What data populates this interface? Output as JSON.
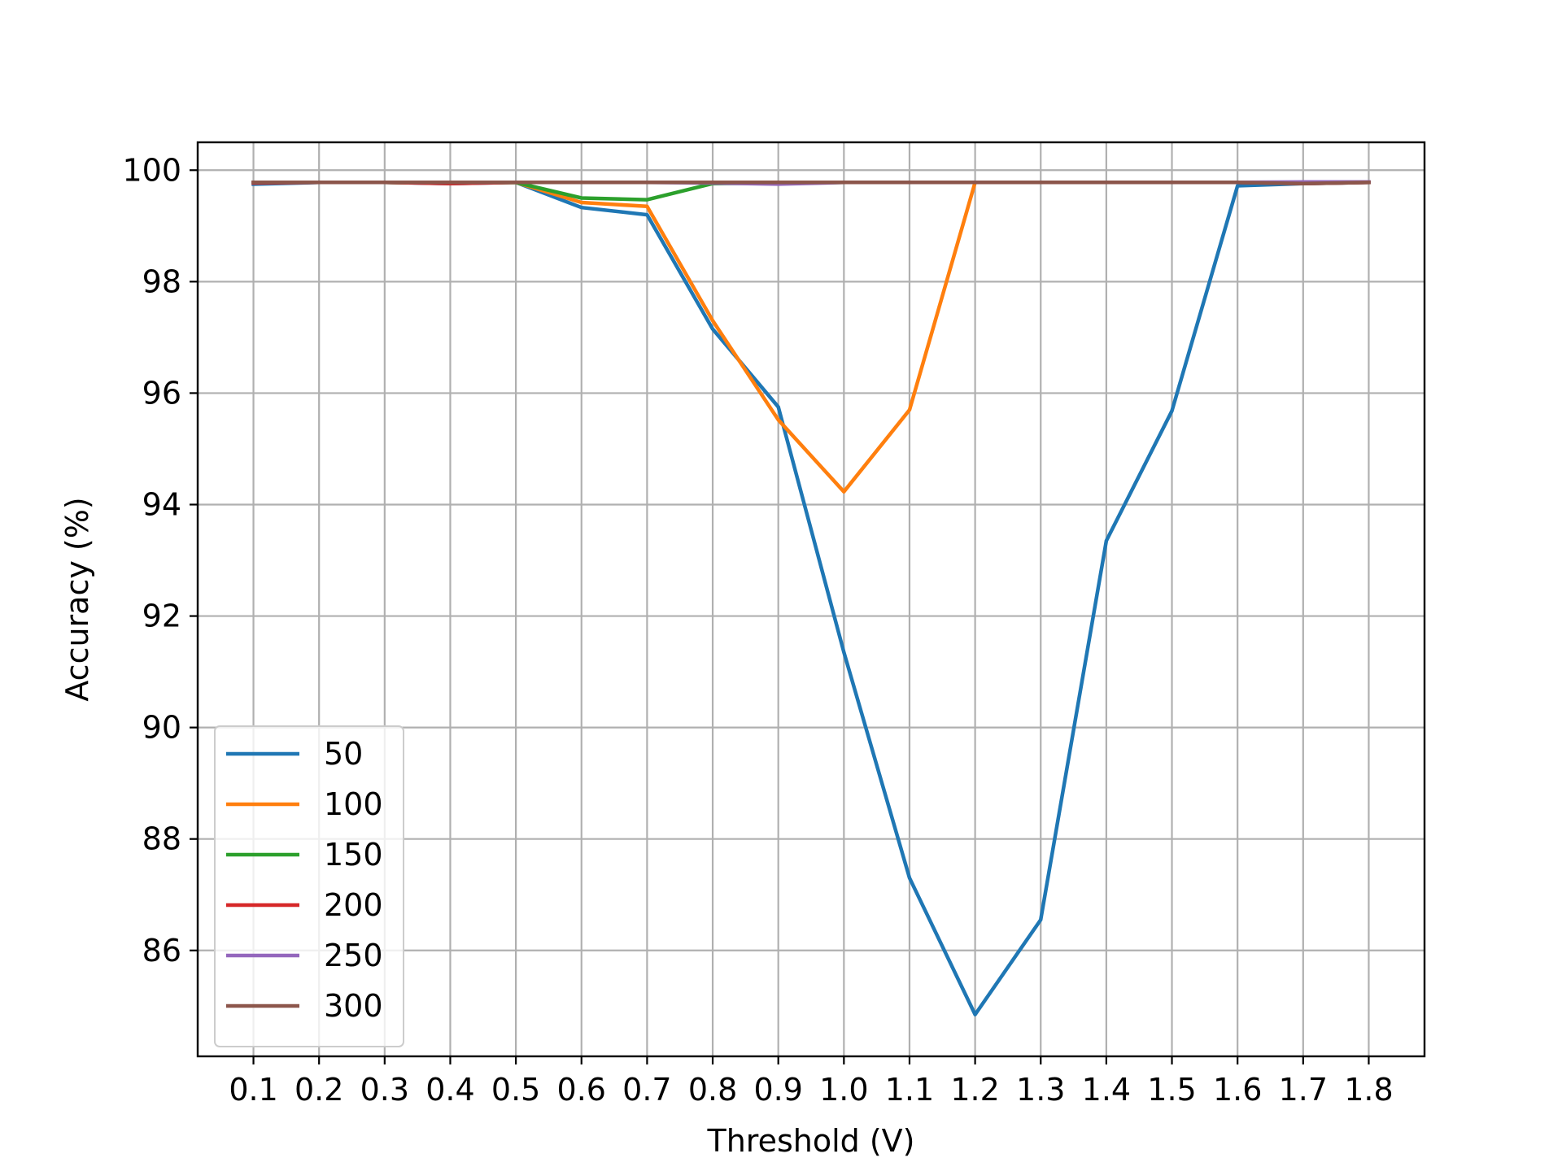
{
  "chart_data": {
    "type": "line",
    "title": "",
    "xlabel": "Threshold (V)",
    "ylabel": "Accuracy (%)",
    "x": [
      0.1,
      0.2,
      0.3,
      0.4,
      0.5,
      0.6,
      0.7,
      0.8,
      0.9,
      1.0,
      1.1,
      1.2,
      1.3,
      1.4,
      1.5,
      1.6,
      1.7,
      1.8
    ],
    "x_tick_labels": [
      "0.1",
      "0.2",
      "0.3",
      "0.4",
      "0.5",
      "0.6",
      "0.7",
      "0.8",
      "0.9",
      "1.0",
      "1.1",
      "1.2",
      "1.3",
      "1.4",
      "1.5",
      "1.6",
      "1.7",
      "1.8"
    ],
    "y_ticks": [
      86,
      88,
      90,
      92,
      94,
      96,
      98,
      100
    ],
    "y_tick_labels": [
      "86",
      "88",
      "90",
      "92",
      "94",
      "96",
      "98",
      "100"
    ],
    "xlim": [
      0.015,
      1.885
    ],
    "ylim": [
      84.1,
      100.5
    ],
    "grid": true,
    "legend_position": "lower-left",
    "series": [
      {
        "name": "50",
        "color": "#1f77b4",
        "values": [
          99.75,
          99.78,
          99.78,
          99.76,
          99.78,
          99.33,
          99.2,
          97.15,
          95.75,
          91.35,
          87.3,
          84.85,
          86.55,
          93.35,
          95.68,
          99.72,
          99.76,
          99.78
        ]
      },
      {
        "name": "100",
        "color": "#ff7f0e",
        "values": [
          99.78,
          99.78,
          99.78,
          99.77,
          99.78,
          99.42,
          99.35,
          97.3,
          95.52,
          94.23,
          95.7,
          99.78,
          99.78,
          99.78,
          99.78,
          99.78,
          99.78,
          99.78
        ]
      },
      {
        "name": "150",
        "color": "#2ca02c",
        "values": [
          99.78,
          99.78,
          99.78,
          99.77,
          99.78,
          99.5,
          99.47,
          99.76,
          99.77,
          99.78,
          99.78,
          99.78,
          99.78,
          99.78,
          99.78,
          99.78,
          99.78,
          99.78
        ]
      },
      {
        "name": "200",
        "color": "#d62728",
        "values": [
          99.77,
          99.78,
          99.78,
          99.76,
          99.78,
          99.78,
          99.78,
          99.78,
          99.78,
          99.78,
          99.78,
          99.78,
          99.78,
          99.78,
          99.78,
          99.78,
          99.76,
          99.78
        ]
      },
      {
        "name": "250",
        "color": "#9467bd",
        "values": [
          99.78,
          99.78,
          99.78,
          99.78,
          99.78,
          99.78,
          99.78,
          99.77,
          99.75,
          99.78,
          99.78,
          99.78,
          99.78,
          99.78,
          99.78,
          99.78,
          99.79,
          99.79
        ]
      },
      {
        "name": "300",
        "color": "#8c564b",
        "values": [
          99.78,
          99.78,
          99.78,
          99.78,
          99.78,
          99.78,
          99.78,
          99.78,
          99.78,
          99.78,
          99.78,
          99.78,
          99.78,
          99.78,
          99.78,
          99.78,
          99.76,
          99.78
        ]
      }
    ]
  }
}
